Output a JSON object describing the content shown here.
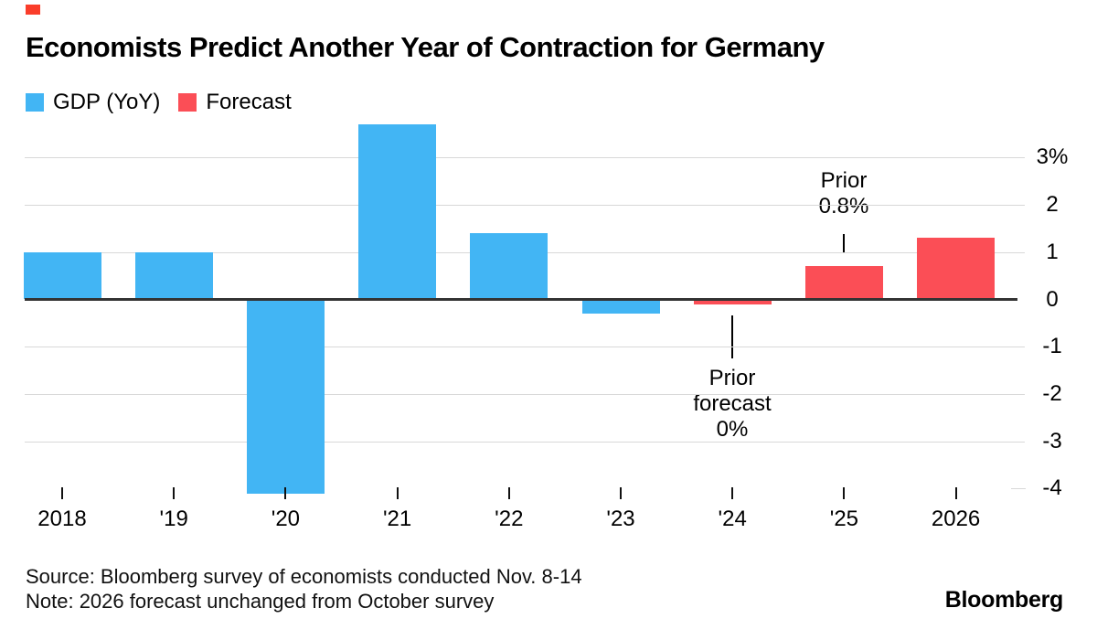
{
  "brand": {
    "marker_color": "#fa3d2a",
    "logo": "Bloomberg"
  },
  "header": {
    "title": "Economists Predict Another Year of Contraction for Germany"
  },
  "legend": [
    {
      "label": "GDP (YoY)",
      "color": "#42b5f4"
    },
    {
      "label": "Forecast",
      "color": "#fb4e56"
    }
  ],
  "chart_data": {
    "type": "bar",
    "title": "Economists Predict Another Year of Contraction for Germany",
    "categories": [
      "2018",
      "'19",
      "'20",
      "'21",
      "'22",
      "'23",
      "'24",
      "'25",
      "2026"
    ],
    "series": [
      {
        "name": "GDP (YoY)",
        "color": "#42b5f4",
        "values": [
          1.0,
          1.0,
          -4.1,
          3.7,
          1.4,
          -0.3,
          null,
          null,
          null
        ]
      },
      {
        "name": "Forecast",
        "color": "#fb4e56",
        "values": [
          null,
          null,
          null,
          null,
          null,
          null,
          -0.1,
          0.7,
          1.3
        ]
      }
    ],
    "xlabel": "",
    "ylabel": "",
    "ylim": [
      -4.3,
      3.8
    ],
    "yticks": [
      {
        "label": "3%",
        "value": 3
      },
      {
        "label": "2",
        "value": 2
      },
      {
        "label": "1",
        "value": 1
      },
      {
        "label": "0",
        "value": 0
      },
      {
        "label": "-1",
        "value": -1
      },
      {
        "label": "-2",
        "value": -2
      },
      {
        "label": "-3",
        "value": -3
      },
      {
        "label": "-4",
        "value": -4
      }
    ],
    "grid": "horizontal",
    "axis_side": "right",
    "legend_position": "top-left",
    "grid_color": "#d8d8d8",
    "zero_line_color": "#333333",
    "annotations": [
      {
        "target": "'25",
        "lines": [
          "Prior",
          "0.8%"
        ]
      },
      {
        "target": "'24",
        "lines": [
          "Prior",
          "forecast",
          "0%"
        ]
      }
    ]
  },
  "footer": {
    "source": "Source: Bloomberg survey of economists conducted Nov. 8-14",
    "note": "Note: 2026 forecast unchanged from October survey"
  }
}
